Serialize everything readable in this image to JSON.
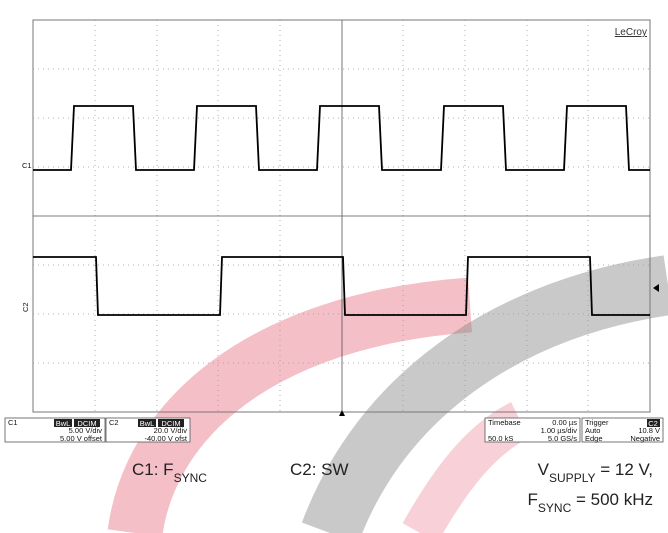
{
  "brand": "LeCroy",
  "traces": {
    "c1": "C1",
    "c2": "C2"
  },
  "panels": {
    "c1": {
      "name": "C1",
      "tags": [
        "BwL",
        "DCIM"
      ],
      "lines": [
        "5.00 V/div",
        "5.00 V offset"
      ]
    },
    "c2": {
      "name": "C2",
      "tags": [
        "BwL",
        "DCIM"
      ],
      "lines": [
        "20.0 V/div",
        "-40.00 V ofst"
      ]
    },
    "timebase": {
      "title": "Timebase",
      "value": "0.00 µs",
      "lines": [
        "1.00 µs/div",
        "5.0 GS/s"
      ],
      "samples": "50.0 kS"
    },
    "trigger": {
      "title": "Trigger",
      "source": "C2",
      "mode": "Auto",
      "level": "10.8 V",
      "type": "Edge",
      "slope": "Negative"
    }
  },
  "captions": {
    "c1": {
      "text": "C1: F",
      "sub": "SYNC"
    },
    "c2": {
      "text": "C2: SW"
    },
    "supply": {
      "text": "V",
      "sub": "SUPPLY",
      "rest": " = 12 V,"
    },
    "fsync": {
      "text": "F",
      "sub": "SYNC",
      "rest": " = 500 kHz"
    }
  }
}
